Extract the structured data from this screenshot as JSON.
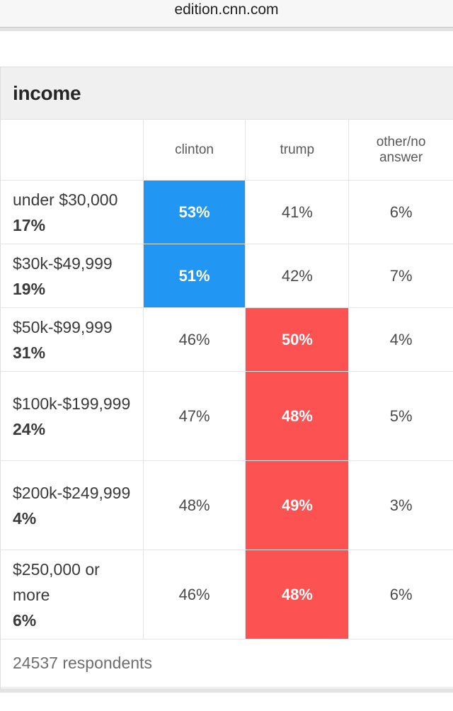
{
  "browser": {
    "url": "edition.cnn.com"
  },
  "poll": {
    "title": "income",
    "columns": [
      "clinton",
      "trump",
      "other/no answer"
    ],
    "rows": [
      {
        "label": "under $30,000",
        "share": "17%",
        "values": [
          "53%",
          "41%",
          "6%"
        ],
        "winner": "clinton"
      },
      {
        "label": "$30k-$49,999",
        "share": "19%",
        "values": [
          "51%",
          "42%",
          "7%"
        ],
        "winner": "clinton"
      },
      {
        "label": "$50k-$99,999",
        "share": "31%",
        "values": [
          "46%",
          "50%",
          "4%"
        ],
        "winner": "trump"
      },
      {
        "label": "$100k-$199,999",
        "share": "24%",
        "values": [
          "47%",
          "48%",
          "5%"
        ],
        "winner": "trump"
      },
      {
        "label": "$200k-$249,999",
        "share": "4%",
        "values": [
          "48%",
          "49%",
          "3%"
        ],
        "winner": "trump"
      },
      {
        "label": "$250,000 or more",
        "share": "6%",
        "values": [
          "46%",
          "48%",
          "6%"
        ],
        "winner": "trump"
      }
    ],
    "respondents": "24537 respondents"
  },
  "colors": {
    "clinton": "#2196f3",
    "trump": "#fd5252"
  }
}
